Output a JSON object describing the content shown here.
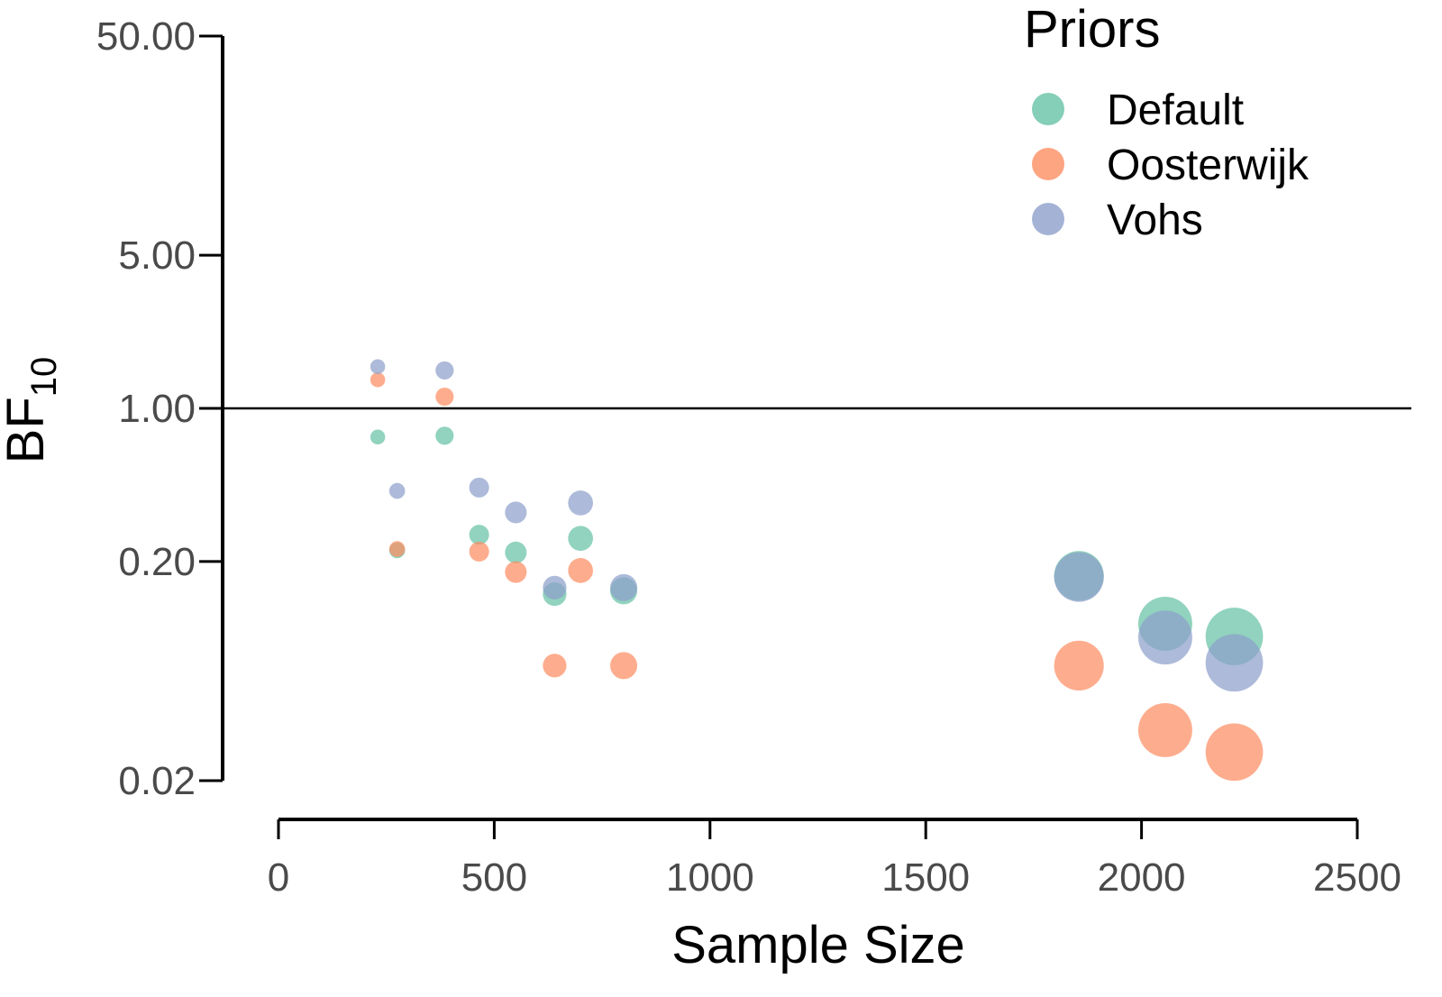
{
  "chart_data": {
    "type": "scatter",
    "title": "",
    "xlabel": "Sample Size",
    "ylabel_main": "BF",
    "ylabel_sub": "10",
    "xlim": [
      0,
      2500
    ],
    "ylim": [
      0.02,
      50
    ],
    "y_scale": "log",
    "x_ticks": [
      0,
      500,
      1000,
      1500,
      2000,
      2500
    ],
    "x_tick_labels": [
      "0",
      "500",
      "1000",
      "1500",
      "2000",
      "2500"
    ],
    "y_ticks": [
      0.02,
      0.2,
      1,
      5,
      50
    ],
    "y_tick_labels": [
      "0.02",
      "0.20",
      "1.00",
      "5.00",
      "50.00"
    ],
    "reference_line_y": 1,
    "grid": false,
    "point_size": "proportional to sample size",
    "legend": {
      "title": "Priors",
      "position": "top-right",
      "entries": [
        "Default",
        "Oosterwijk",
        "Vohs"
      ]
    },
    "series": [
      {
        "name": "Default",
        "color": "#66c2a5",
        "points": [
          {
            "x": 230,
            "y": 0.74
          },
          {
            "x": 275,
            "y": 0.225
          },
          {
            "x": 385,
            "y": 0.75
          },
          {
            "x": 465,
            "y": 0.265
          },
          {
            "x": 550,
            "y": 0.22
          },
          {
            "x": 640,
            "y": 0.142
          },
          {
            "x": 700,
            "y": 0.255
          },
          {
            "x": 800,
            "y": 0.147
          },
          {
            "x": 1855,
            "y": 0.172
          },
          {
            "x": 2055,
            "y": 0.104
          },
          {
            "x": 2215,
            "y": 0.091
          }
        ]
      },
      {
        "name": "Oosterwijk",
        "color": "#fc8d62",
        "points": [
          {
            "x": 230,
            "y": 1.35
          },
          {
            "x": 275,
            "y": 0.228
          },
          {
            "x": 385,
            "y": 1.13
          },
          {
            "x": 465,
            "y": 0.222
          },
          {
            "x": 550,
            "y": 0.179
          },
          {
            "x": 640,
            "y": 0.067
          },
          {
            "x": 700,
            "y": 0.182
          },
          {
            "x": 800,
            "y": 0.067
          },
          {
            "x": 1855,
            "y": 0.067
          },
          {
            "x": 2055,
            "y": 0.034
          },
          {
            "x": 2215,
            "y": 0.027
          }
        ]
      },
      {
        "name": "Vohs",
        "color": "#8da0cb",
        "points": [
          {
            "x": 230,
            "y": 1.55
          },
          {
            "x": 275,
            "y": 0.42
          },
          {
            "x": 385,
            "y": 1.49
          },
          {
            "x": 465,
            "y": 0.435
          },
          {
            "x": 550,
            "y": 0.335
          },
          {
            "x": 640,
            "y": 0.152
          },
          {
            "x": 700,
            "y": 0.37
          },
          {
            "x": 800,
            "y": 0.152
          },
          {
            "x": 1855,
            "y": 0.17
          },
          {
            "x": 2055,
            "y": 0.09
          },
          {
            "x": 2215,
            "y": 0.069
          }
        ]
      }
    ]
  }
}
